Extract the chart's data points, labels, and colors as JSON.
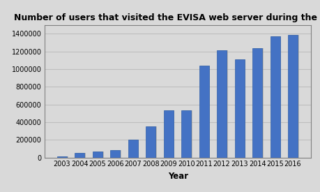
{
  "title": "Number of users that visited the EVISA web server during the year",
  "xlabel": "Year",
  "years": [
    2003,
    2004,
    2005,
    2006,
    2007,
    2008,
    2009,
    2010,
    2011,
    2012,
    2013,
    2014,
    2015,
    2016
  ],
  "values": [
    15000,
    50000,
    70000,
    80000,
    205000,
    355000,
    530000,
    530000,
    1040000,
    1210000,
    1110000,
    1240000,
    1370000,
    1390000
  ],
  "bar_color": "#4472C4",
  "bar_edge_color": "#2E5EA8",
  "plot_bg_color": "#D9D9D9",
  "fig_bg_color": "#D9D9D9",
  "grid_color": "#BEBEBE",
  "ylim": [
    0,
    1500000
  ],
  "yticks": [
    0,
    200000,
    400000,
    600000,
    800000,
    1000000,
    1200000,
    1400000
  ],
  "title_fontsize": 9,
  "label_fontsize": 8.5,
  "tick_fontsize": 7,
  "bar_width": 0.55
}
